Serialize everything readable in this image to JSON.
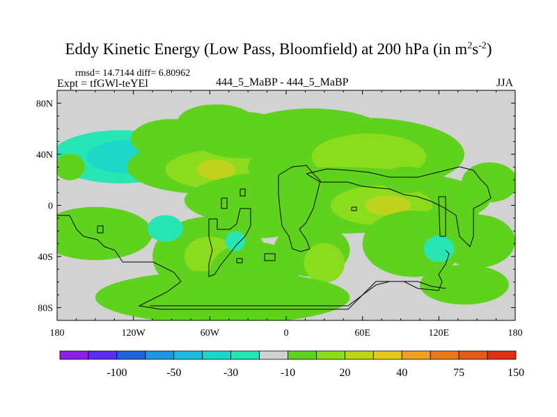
{
  "chart_data": {
    "type": "heatmap",
    "title": "Eddy Kinetic Energy (Low Pass, Bloomfield) at 200 hPa (in m",
    "title_units_sup1": "2",
    "title_units_mid": "s",
    "title_units_sup2": "-2",
    "title_units_close": ")",
    "stats": "rmsd= 14.7144 diff= 6.80962",
    "experiment": "Expt = tfGWl-teYEl",
    "panel_label": "444_5_MaBP - 444_5_MaBP",
    "season": "JJA",
    "x_ticks": [
      "180",
      "120W",
      "60W",
      "0",
      "60E",
      "120E",
      "180"
    ],
    "x_tick_lons": [
      -180,
      -120,
      -60,
      0,
      60,
      120,
      180
    ],
    "y_ticks": [
      "80N",
      "40N",
      "0",
      "40S",
      "80S"
    ],
    "y_tick_lats": [
      80,
      40,
      0,
      -40,
      -80
    ],
    "xlim": [
      -180,
      180
    ],
    "ylim": [
      -90,
      90
    ],
    "colorbar_labels": [
      "-100",
      "-50",
      "-30",
      "-10",
      "20",
      "40",
      "75",
      "150"
    ],
    "colorbar_label_boundaries": [
      1,
      3,
      5,
      7,
      9,
      11,
      13,
      15
    ],
    "colorbar_colors": [
      "#8c1ee6",
      "#5a2df0",
      "#1e64dc",
      "#1e96e6",
      "#1eb9e1",
      "#1ed7c8",
      "#28e6b4",
      "#d2d2d2",
      "#5fd21e",
      "#8cdc1e",
      "#bed21e",
      "#e6c81e",
      "#f0a01e",
      "#eb7814",
      "#e65a14",
      "#dc3214"
    ],
    "blobs": [
      {
        "lon": -130,
        "lat": 38,
        "rx": 55,
        "ry": 8,
        "level": -1
      },
      {
        "lon": -125,
        "lat": 38,
        "rx": 32,
        "ry": 5,
        "level": -2
      },
      {
        "lon": -90,
        "lat": 52,
        "rx": 32,
        "ry": 6,
        "level": 1
      },
      {
        "lon": -65,
        "lat": 30,
        "rx": 60,
        "ry": 8,
        "level": 1
      },
      {
        "lon": -50,
        "lat": 28,
        "rx": 45,
        "ry": 6,
        "level": 2
      },
      {
        "lon": -55,
        "lat": 28,
        "rx": 15,
        "ry": 3,
        "level": 3
      },
      {
        "lon": -35,
        "lat": 55,
        "rx": 40,
        "ry": 7,
        "level": 1
      },
      {
        "lon": -55,
        "lat": 66,
        "rx": 30,
        "ry": 5,
        "level": 1
      },
      {
        "lon": 20,
        "lat": 55,
        "rx": 60,
        "ry": 8,
        "level": 1
      },
      {
        "lon": 60,
        "lat": 40,
        "rx": 80,
        "ry": 11,
        "level": 1
      },
      {
        "lon": 65,
        "lat": 38,
        "rx": 45,
        "ry": 7,
        "level": 2
      },
      {
        "lon": 40,
        "lat": 4,
        "rx": 120,
        "ry": 10,
        "level": 1
      },
      {
        "lon": 75,
        "lat": 0,
        "rx": 40,
        "ry": 6,
        "level": 2
      },
      {
        "lon": 80,
        "lat": 0,
        "rx": 18,
        "ry": 3,
        "level": 3
      },
      {
        "lon": -20,
        "lat": -10,
        "rx": 35,
        "ry": 6,
        "level": 1
      },
      {
        "lon": -150,
        "lat": -22,
        "rx": 45,
        "ry": 8,
        "level": 1
      },
      {
        "lon": -60,
        "lat": -40,
        "rx": 45,
        "ry": 12,
        "level": 1
      },
      {
        "lon": -60,
        "lat": -40,
        "rx": 20,
        "ry": 6,
        "level": 2
      },
      {
        "lon": -25,
        "lat": -52,
        "rx": 35,
        "ry": 9,
        "level": 1
      },
      {
        "lon": 20,
        "lat": -35,
        "rx": 30,
        "ry": 8,
        "level": 1
      },
      {
        "lon": 30,
        "lat": -45,
        "rx": 16,
        "ry": 6,
        "level": 2
      },
      {
        "lon": -50,
        "lat": -72,
        "rx": 100,
        "ry": 8,
        "level": 1
      },
      {
        "lon": 140,
        "lat": -62,
        "rx": 35,
        "ry": 6,
        "level": 1
      },
      {
        "lon": 150,
        "lat": -28,
        "rx": 30,
        "ry": 8,
        "level": 1
      },
      {
        "lon": 160,
        "lat": 18,
        "rx": 22,
        "ry": 6,
        "level": 1
      },
      {
        "lon": 100,
        "lat": -30,
        "rx": 40,
        "ry": 10,
        "level": 1
      },
      {
        "lon": 130,
        "lat": -15,
        "rx": 25,
        "ry": 6,
        "level": 1
      },
      {
        "lon": -10,
        "lat": 30,
        "rx": 20,
        "ry": 5,
        "level": 1
      },
      {
        "lon": 120,
        "lat": -34,
        "rx": 12,
        "ry": 4,
        "level": -1
      },
      {
        "lon": -95,
        "lat": -18,
        "rx": 14,
        "ry": 4,
        "level": -1
      },
      {
        "lon": -40,
        "lat": -28,
        "rx": 8,
        "ry": 3,
        "level": -1
      },
      {
        "lon": 95,
        "lat": 20,
        "rx": 20,
        "ry": 4,
        "level": 1
      },
      {
        "lon": -170,
        "lat": 30,
        "rx": 12,
        "ry": 4,
        "level": 1
      }
    ]
  }
}
